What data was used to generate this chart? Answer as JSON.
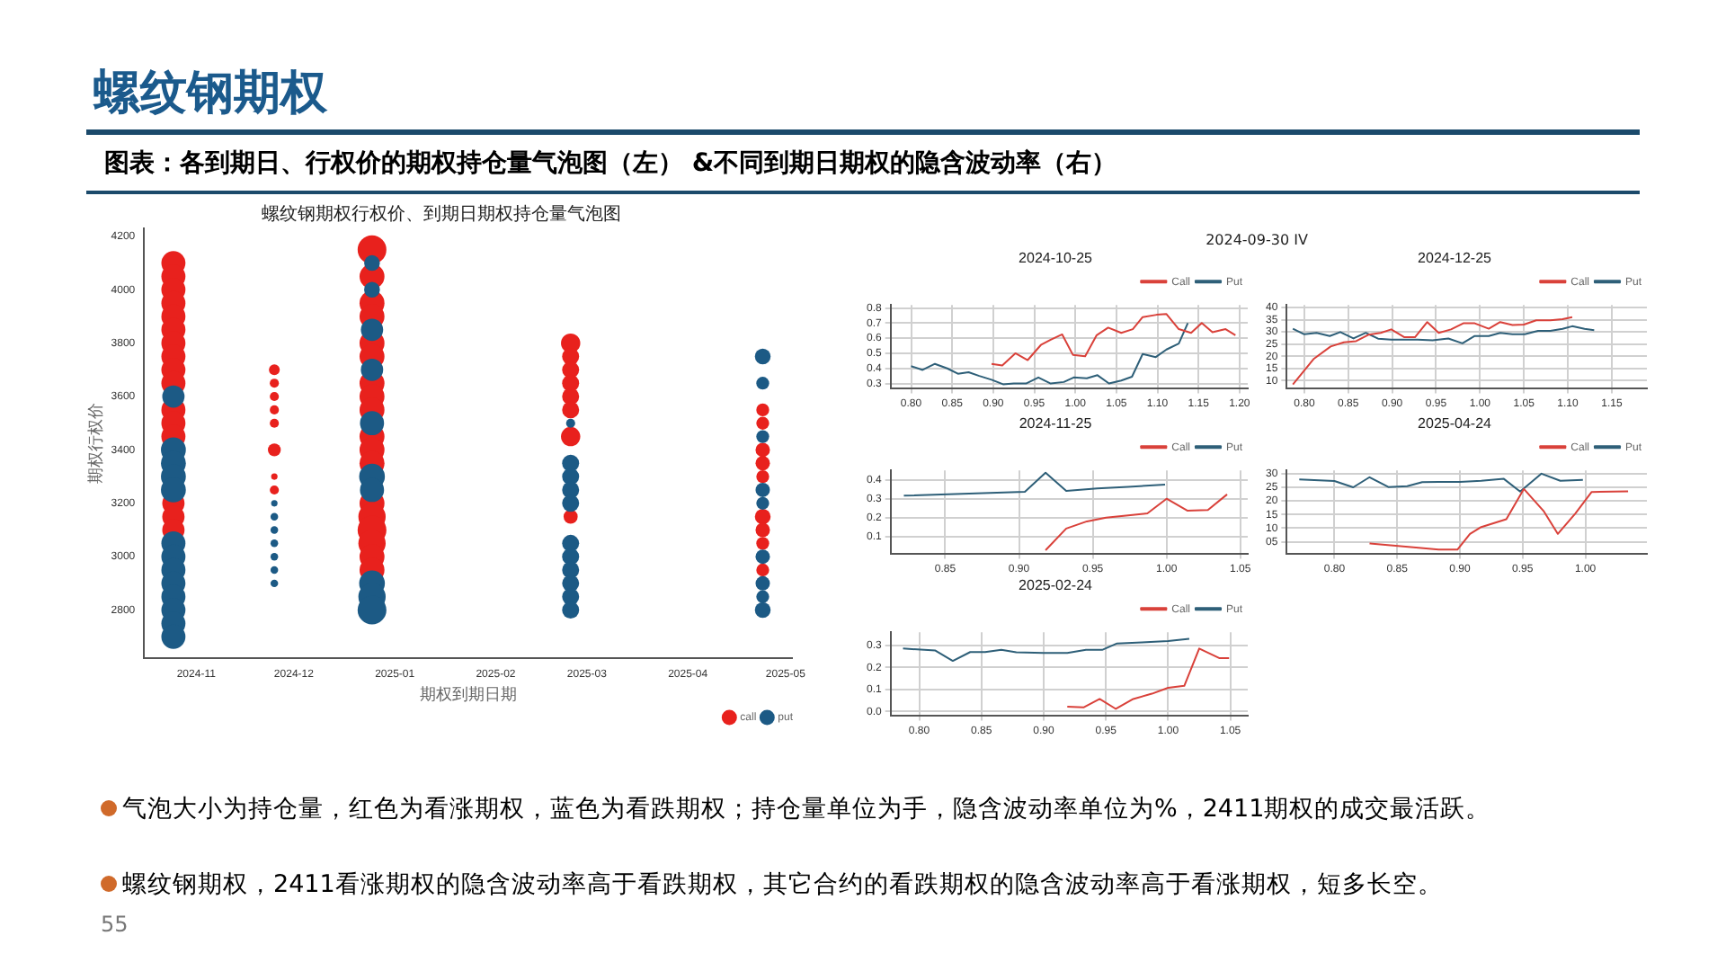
{
  "chart_data": [
    {
      "type": "other",
      "title": "螺纹钢期权",
      "subtitle": "图表：各到期日、行权价的期权持仓量气泡图（左） &不同到期日期权的隐含波动率（右）",
      "annotations": [
        "气泡大小为持仓量，红色为看涨期权，蓝色为看跌期权；持仓量单位为手，隐含波动率单位为%，2411期权的成交最活跃。",
        "螺纹钢期权，2411看涨期权的隐含波动率高于看跌期权，其它合约的看跌期权的隐含波动率高于看涨期权，短多长空。",
        "55"
      ]
    },
    {
      "type": "bubble",
      "title": "螺纹钢期权行权价、到期日期权持仓量气泡图",
      "xlabel": "期权到期日期",
      "ylabel": "期权行权价",
      "legend": "bottom right",
      "xlim": [
        "2024-10-16",
        "2025-05-03"
      ],
      "xticks": [
        "2024-11",
        "2024-12",
        "2025-01",
        "2025-02",
        "2025-03",
        "2025-04",
        "2025-05"
      ],
      "ylim": [
        2620,
        4230
      ],
      "yticks": [
        2800,
        3000,
        3200,
        3400,
        3600,
        3800,
        4000,
        4200
      ],
      "series": [
        {
          "name": "call",
          "color": "#e8211d",
          "x": [
            "2024-10-25",
            "2024-10-25",
            "2024-10-25",
            "2024-10-25",
            "2024-10-25",
            "2024-10-25",
            "2024-10-25",
            "2024-10-25",
            "2024-10-25",
            "2024-10-25",
            "2024-10-25",
            "2024-10-25",
            "2024-10-25",
            "2024-10-25",
            "2024-10-25",
            "2024-10-25",
            "2024-11-25",
            "2024-11-25",
            "2024-11-25",
            "2024-11-25",
            "2024-11-25",
            "2024-11-25",
            "2024-11-25",
            "2024-11-25",
            "2024-12-25",
            "2024-12-25",
            "2024-12-25",
            "2024-12-25",
            "2024-12-25",
            "2024-12-25",
            "2024-12-25",
            "2024-12-25",
            "2024-12-25",
            "2024-12-25",
            "2024-12-25",
            "2024-12-25",
            "2024-12-25",
            "2024-12-25",
            "2024-12-25",
            "2024-12-25",
            "2024-12-25",
            "2024-12-25",
            "2025-02-24",
            "2025-02-24",
            "2025-02-24",
            "2025-02-24",
            "2025-02-24",
            "2025-02-24",
            "2025-02-24",
            "2025-02-24",
            "2025-04-24",
            "2025-04-24",
            "2025-04-24",
            "2025-04-24",
            "2025-04-24",
            "2025-04-24",
            "2025-04-24",
            "2025-04-24",
            "2025-04-24"
          ],
          "values": [
            4100,
            4050,
            4000,
            3950,
            3900,
            3850,
            3800,
            3750,
            3700,
            3650,
            3550,
            3500,
            3450,
            3200,
            3150,
            3100,
            3700,
            3650,
            3600,
            3550,
            3500,
            3400,
            3300,
            3250,
            4150,
            4050,
            3950,
            3900,
            3800,
            3750,
            3650,
            3600,
            3550,
            3450,
            3400,
            3350,
            3200,
            3150,
            3100,
            3050,
            3000,
            2950,
            3800,
            3750,
            3700,
            3650,
            3600,
            3550,
            3450,
            3150,
            3550,
            3500,
            3400,
            3350,
            3300,
            3150,
            3100,
            3050,
            2950
          ],
          "sizes": [
            0.7,
            0.7,
            0.7,
            0.7,
            0.7,
            0.7,
            0.7,
            0.7,
            0.7,
            0.7,
            0.7,
            0.7,
            0.7,
            0.6,
            0.6,
            0.6,
            0.14,
            0.1,
            0.1,
            0.1,
            0.1,
            0.2,
            0.05,
            0.1,
            1.0,
            0.75,
            0.75,
            0.75,
            0.75,
            0.75,
            0.75,
            0.75,
            0.75,
            0.75,
            0.75,
            0.75,
            0.75,
            0.9,
            1.0,
            0.9,
            0.75,
            0.75,
            0.45,
            0.35,
            0.35,
            0.35,
            0.35,
            0.35,
            0.45,
            0.24,
            0.2,
            0.2,
            0.25,
            0.25,
            0.2,
            0.3,
            0.25,
            0.2,
            0.2
          ]
        },
        {
          "name": "put",
          "color": "#1c5a85",
          "x": [
            "2024-10-25",
            "2024-10-25",
            "2024-10-25",
            "2024-10-25",
            "2024-10-25",
            "2024-10-25",
            "2024-10-25",
            "2024-10-25",
            "2024-10-25",
            "2024-10-25",
            "2024-10-25",
            "2024-10-25",
            "2024-10-25",
            "2024-11-25",
            "2024-11-25",
            "2024-11-25",
            "2024-11-25",
            "2024-11-25",
            "2024-11-25",
            "2024-11-25",
            "2024-12-25",
            "2024-12-25",
            "2024-12-25",
            "2024-12-25",
            "2024-12-25",
            "2024-12-25",
            "2024-12-25",
            "2024-12-25",
            "2024-12-25",
            "2024-12-25",
            "2025-02-24",
            "2025-02-24",
            "2025-02-24",
            "2025-02-24",
            "2025-02-24",
            "2025-02-24",
            "2025-02-24",
            "2025-02-24",
            "2025-02-24",
            "2025-02-24",
            "2025-02-24",
            "2025-04-24",
            "2025-04-24",
            "2025-04-24",
            "2025-04-24",
            "2025-04-24",
            "2025-04-24",
            "2025-04-24",
            "2025-04-24",
            "2025-04-24"
          ],
          "values": [
            3600,
            3400,
            3350,
            3300,
            3250,
            3050,
            3000,
            2950,
            2900,
            2850,
            2800,
            2750,
            2700,
            3200,
            3150,
            3100,
            3050,
            3000,
            2950,
            2900,
            4100,
            4000,
            3850,
            3700,
            3500,
            3300,
            3250,
            2900,
            2850,
            2800,
            3500,
            3350,
            3300,
            3250,
            3200,
            3050,
            3000,
            2950,
            2900,
            2850,
            2800,
            3750,
            3650,
            3450,
            3250,
            3200,
            3000,
            2900,
            2850,
            2800
          ],
          "sizes": [
            0.6,
            0.75,
            0.75,
            0.75,
            0.75,
            0.7,
            0.7,
            0.7,
            0.7,
            0.7,
            0.7,
            0.7,
            0.7,
            0.05,
            0.07,
            0.07,
            0.07,
            0.07,
            0.07,
            0.07,
            0.3,
            0.3,
            0.6,
            0.6,
            0.7,
            0.8,
            0.7,
            0.8,
            0.9,
            1.0,
            0.1,
            0.35,
            0.35,
            0.35,
            0.35,
            0.35,
            0.35,
            0.35,
            0.35,
            0.35,
            0.35,
            0.3,
            0.2,
            0.2,
            0.25,
            0.2,
            0.25,
            0.25,
            0.2,
            0.3
          ]
        }
      ]
    },
    {
      "type": "other",
      "title": "2024-09-30 IV"
    },
    {
      "type": "line",
      "title": "2024-10-25",
      "legend": "top right",
      "grid": true,
      "xlim": [
        0.775,
        1.21
      ],
      "xticks": [
        {
          "value": 0.8,
          "label": "0.80"
        },
        {
          "value": 0.85,
          "label": "0.85"
        },
        {
          "value": 0.9,
          "label": "0.90"
        },
        {
          "value": 0.95,
          "label": "0.95"
        },
        {
          "value": 1.0,
          "label": "1.00"
        },
        {
          "value": 1.05,
          "label": "1.05"
        },
        {
          "value": 1.1,
          "label": "1.10"
        },
        {
          "value": 1.15,
          "label": "1.15"
        },
        {
          "value": 1.2,
          "label": "1.20"
        }
      ],
      "ylim": [
        0.27,
        0.82
      ],
      "yticks": [
        0.3,
        0.4,
        0.5,
        0.6,
        0.7,
        0.8
      ],
      "series": [
        {
          "name": "Call",
          "color": "#d9413a",
          "x": [
            0.898,
            0.911,
            0.927,
            0.942,
            0.958,
            0.97,
            0.984,
            0.997,
            1.012,
            1.026,
            1.04,
            1.056,
            1.07,
            1.082,
            1.099,
            1.111,
            1.126,
            1.141,
            1.154,
            1.167,
            1.183,
            1.195
          ],
          "values": [
            0.43,
            0.42,
            0.5,
            0.455,
            0.555,
            0.59,
            0.625,
            0.49,
            0.48,
            0.62,
            0.67,
            0.635,
            0.66,
            0.74,
            0.755,
            0.76,
            0.66,
            0.635,
            0.7,
            0.64,
            0.66,
            0.62
          ]
        },
        {
          "name": "Put",
          "color": "#2e5f78",
          "x": [
            0.8,
            0.814,
            0.829,
            0.844,
            0.857,
            0.87,
            0.883,
            0.898,
            0.912,
            0.925,
            0.94,
            0.955,
            0.97,
            0.986,
            0.998,
            1.014,
            1.027,
            1.041,
            1.056,
            1.069,
            1.082,
            1.098,
            1.111,
            1.126,
            1.137
          ],
          "values": [
            0.415,
            0.39,
            0.43,
            0.4,
            0.365,
            0.375,
            0.35,
            0.325,
            0.295,
            0.3,
            0.3,
            0.34,
            0.3,
            0.31,
            0.34,
            0.335,
            0.355,
            0.3,
            0.32,
            0.345,
            0.495,
            0.475,
            0.525,
            0.565,
            0.7
          ]
        }
      ]
    },
    {
      "type": "line",
      "title": "2024-12-25",
      "legend": "top right",
      "grid": true,
      "xlim": [
        0.78,
        1.19
      ],
      "xticks": [
        {
          "value": 0.8,
          "label": "0.80"
        },
        {
          "value": 0.85,
          "label": "0.85"
        },
        {
          "value": 0.9,
          "label": "0.90"
        },
        {
          "value": 0.95,
          "label": "0.95"
        },
        {
          "value": 1.0,
          "label": "1.00"
        },
        {
          "value": 1.05,
          "label": "1.05"
        },
        {
          "value": 1.1,
          "label": "1.10"
        },
        {
          "value": 1.15,
          "label": "1.15"
        }
      ],
      "ylim": [
        7,
        41
      ],
      "yticks": [
        10,
        15,
        20,
        25,
        30,
        35,
        40
      ],
      "series": [
        {
          "name": "Call",
          "color": "#d9413a",
          "x": [
            0.787,
            0.811,
            0.83,
            0.845,
            0.859,
            0.873,
            0.887,
            0.899,
            0.914,
            0.926,
            0.94,
            0.953,
            0.967,
            0.981,
            0.994,
            1.01,
            1.023,
            1.037,
            1.05,
            1.064,
            1.08,
            1.094,
            1.105
          ],
          "values": [
            8.5,
            19,
            24,
            25.7,
            26.2,
            28.8,
            29.6,
            31,
            27.8,
            27.8,
            34,
            29.6,
            31,
            33.5,
            33.5,
            31.3,
            34,
            32.8,
            33,
            34.7,
            34.7,
            35.2,
            36
          ]
        },
        {
          "name": "Put",
          "color": "#2e5f78",
          "x": [
            0.787,
            0.8,
            0.814,
            0.829,
            0.841,
            0.856,
            0.87,
            0.884,
            0.899,
            0.914,
            0.929,
            0.946,
            0.964,
            0.98,
            0.994,
            1.01,
            1.023,
            1.037,
            1.051,
            1.066,
            1.08,
            1.094,
            1.105,
            1.119,
            1.13
          ],
          "values": [
            31.3,
            29,
            29.6,
            28.3,
            29.9,
            27.3,
            29.6,
            27.2,
            26.8,
            26.8,
            26.8,
            26.5,
            27.3,
            25.3,
            28.3,
            28.3,
            29.6,
            29,
            29,
            30.4,
            30.4,
            31.2,
            32.3,
            31.2,
            30.7
          ]
        }
      ]
    },
    {
      "type": "line",
      "title": "2024-11-25",
      "legend": "top right",
      "grid": true,
      "xlim": [
        0.813,
        1.055
      ],
      "xticks": [
        {
          "value": 0.85,
          "label": "0.85"
        },
        {
          "value": 0.9,
          "label": "0.90"
        },
        {
          "value": 0.95,
          "label": "0.95"
        },
        {
          "value": 1.0,
          "label": "1.00"
        },
        {
          "value": 1.05,
          "label": "1.05"
        }
      ],
      "ylim": [
        0.01,
        0.45
      ],
      "yticks": [
        0.1,
        0.2,
        0.3,
        0.4
      ],
      "series": [
        {
          "name": "Call",
          "color": "#d9413a",
          "x": [
            0.918,
            0.932,
            0.946,
            0.959,
            0.974,
            0.987,
            1.0,
            1.014,
            1.028,
            1.041
          ],
          "values": [
            0.027,
            0.142,
            0.18,
            0.2,
            0.212,
            0.222,
            0.3,
            0.237,
            0.24,
            0.323
          ]
        },
        {
          "name": "Put",
          "color": "#2e5f78",
          "x": [
            0.822,
            0.904,
            0.918,
            0.932,
            0.953,
            0.974,
            0.999
          ],
          "values": [
            0.316,
            0.337,
            0.438,
            0.342,
            0.355,
            0.363,
            0.375
          ]
        }
      ]
    },
    {
      "type": "line",
      "title": "2025-04-24",
      "legend": "top right",
      "grid": true,
      "xlim": [
        0.762,
        1.049
      ],
      "xticks": [
        {
          "value": 0.8,
          "label": "0.80"
        },
        {
          "value": 0.85,
          "label": "0.85"
        },
        {
          "value": 0.9,
          "label": "0.90"
        },
        {
          "value": 0.95,
          "label": "0.95"
        },
        {
          "value": 1.0,
          "label": "1.00"
        }
      ],
      "ylim": [
        0.7,
        31.2
      ],
      "yticks": [
        {
          "value": 5,
          "label": "05"
        },
        10,
        15,
        20,
        25,
        30
      ],
      "series": [
        {
          "name": "Call",
          "color": "#d9413a",
          "x": [
            0.828,
            0.863,
            0.883,
            0.898,
            0.908,
            0.917,
            0.937,
            0.951,
            0.967,
            0.978,
            0.992,
            1.005,
            1.034
          ],
          "values": [
            4.4,
            3,
            2.1,
            2.1,
            7.9,
            10.4,
            13.3,
            24.4,
            16.1,
            7.9,
            15.4,
            23.3,
            23.5
          ]
        },
        {
          "name": "Put",
          "color": "#2e5f78",
          "x": [
            0.772,
            0.8,
            0.815,
            0.828,
            0.843,
            0.858,
            0.87,
            0.883,
            0.9,
            0.917,
            0.935,
            0.948,
            0.965,
            0.98,
            0.998
          ],
          "values": [
            27.9,
            27.3,
            25,
            28.7,
            25.1,
            25.4,
            26.9,
            27,
            27,
            27.4,
            28.1,
            23.4,
            30,
            27.4,
            27.7
          ]
        }
      ]
    },
    {
      "type": "line",
      "title": "2025-02-24",
      "legend": "top right",
      "grid": true,
      "xlim": [
        0.777,
        1.064
      ],
      "xticks": [
        {
          "value": 0.8,
          "label": "0.80"
        },
        {
          "value": 0.85,
          "label": "0.85"
        },
        {
          "value": 0.9,
          "label": "0.90"
        },
        {
          "value": 0.95,
          "label": "0.95"
        },
        {
          "value": 1.0,
          "label": "1.00"
        },
        {
          "value": 1.05,
          "label": "1.05"
        }
      ],
      "ylim": [
        -0.017,
        0.36
      ],
      "yticks": [
        {
          "value": 0,
          "label": "0.0"
        },
        0.1,
        0.2,
        0.3
      ],
      "series": [
        {
          "name": "Call",
          "color": "#d9413a",
          "x": [
            0.919,
            0.932,
            0.945,
            0.958,
            0.972,
            0.987,
            1.0,
            1.013,
            1.025,
            1.041,
            1.049
          ],
          "values": [
            0.022,
            0.019,
            0.057,
            0.012,
            0.057,
            0.081,
            0.108,
            0.117,
            0.286,
            0.243,
            0.243
          ]
        },
        {
          "name": "Put",
          "color": "#2e5f78",
          "x": [
            0.787,
            0.813,
            0.827,
            0.841,
            0.853,
            0.866,
            0.878,
            0.9,
            0.919,
            0.934,
            0.947,
            0.959,
            0.979,
            1.0,
            1.017
          ],
          "values": [
            0.286,
            0.277,
            0.23,
            0.27,
            0.27,
            0.28,
            0.269,
            0.266,
            0.266,
            0.28,
            0.28,
            0.309,
            0.314,
            0.32,
            0.33
          ]
        }
      ]
    }
  ]
}
